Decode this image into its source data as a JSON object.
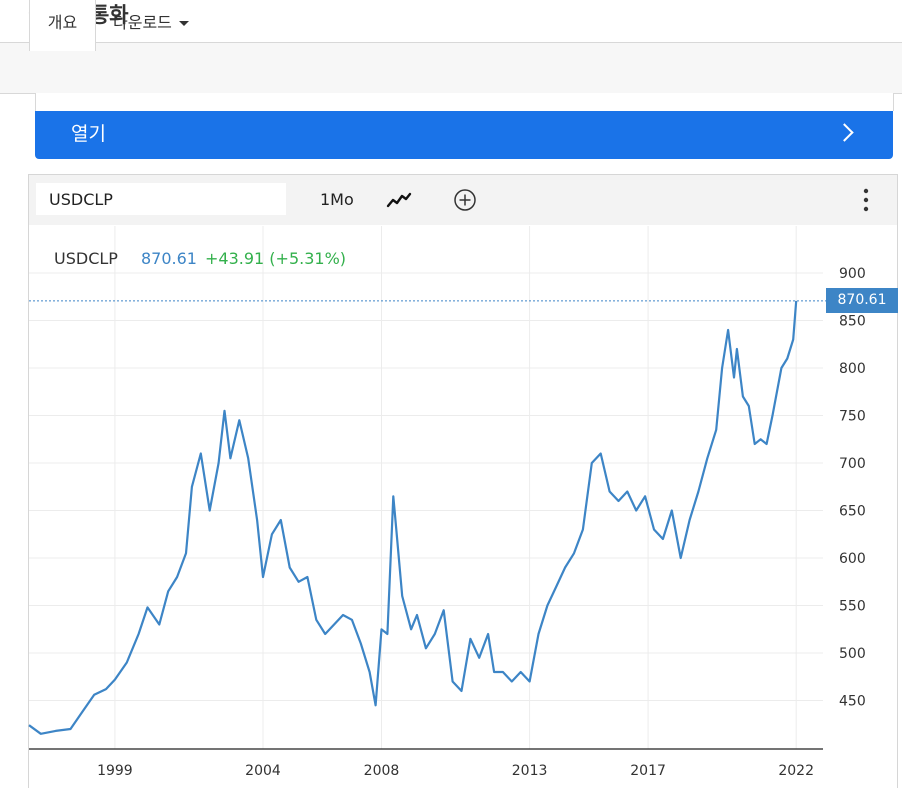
{
  "page": {
    "title": "칠레 - 통화"
  },
  "tabs": {
    "overview": "개요",
    "download": "다운로드"
  },
  "open_button": {
    "label": "열기"
  },
  "toolbar": {
    "symbol": "USDCLP",
    "interval": "1Mo",
    "icons": [
      "line-chart-icon",
      "add-circle-icon",
      "more-vert-icon"
    ]
  },
  "legend": {
    "symbol": "USDCLP",
    "value": "870.61",
    "change": "+43.91 (+5.31%)"
  },
  "colors": {
    "line": "#3d85c6",
    "change_positive": "#33b04c",
    "accent": "#1a73e8"
  },
  "chart_data": {
    "type": "line",
    "title": "",
    "xlabel": "",
    "ylabel": "",
    "x_tick_labels": [
      "1999",
      "2004",
      "2008",
      "2013",
      "2017",
      "2022"
    ],
    "x_tick_years": [
      1999,
      2004,
      2008,
      2013,
      2017,
      2022
    ],
    "y_tick_labels": [
      "900",
      "850",
      "800",
      "750",
      "700",
      "650",
      "600",
      "550",
      "500",
      "450"
    ],
    "ylim": [
      405,
      955
    ],
    "xlim": [
      1996.1,
      2022.5
    ],
    "grid": true,
    "last_price_label": "870.61",
    "last_price": 870.61,
    "series": [
      {
        "x": [
          1996.1,
          1996.5,
          1997.0,
          1997.5,
          1997.9,
          1998.3,
          1998.7,
          1999.0,
          1999.4,
          1999.8,
          2000.1,
          2000.5,
          2000.8,
          2001.1,
          2001.4,
          2001.6,
          2001.9,
          2002.2,
          2002.5,
          2002.7,
          2002.9,
          2003.2,
          2003.5,
          2003.8,
          2004.0,
          2004.3,
          2004.6,
          2004.9,
          2005.2,
          2005.5,
          2005.8,
          2006.1,
          2006.4,
          2006.7,
          2007.0,
          2007.3,
          2007.6,
          2007.8,
          2008.0,
          2008.2,
          2008.4,
          2008.5,
          2008.7,
          2009.0,
          2009.2,
          2009.5,
          2009.8,
          2010.1,
          2010.4,
          2010.7,
          2011.0,
          2011.3,
          2011.6,
          2011.8,
          2012.1,
          2012.4,
          2012.7,
          2013.0,
          2013.3,
          2013.6,
          2013.9,
          2014.2,
          2014.5,
          2014.8,
          2015.1,
          2015.4,
          2015.7,
          2016.0,
          2016.3,
          2016.6,
          2016.9,
          2017.2,
          2017.5,
          2017.8,
          2018.1,
          2018.4,
          2018.7,
          2019.0,
          2019.3,
          2019.5,
          2019.7,
          2019.9,
          2020.0,
          2020.2,
          2020.4,
          2020.6,
          2020.8,
          2021.0,
          2021.2,
          2021.5,
          2021.7,
          2021.9,
          2022.0
        ],
        "y": [
          424,
          415,
          418,
          420,
          438,
          456,
          462,
          472,
          490,
          520,
          548,
          530,
          565,
          580,
          605,
          675,
          710,
          650,
          700,
          755,
          705,
          745,
          705,
          640,
          580,
          625,
          640,
          590,
          575,
          580,
          535,
          520,
          530,
          540,
          535,
          510,
          480,
          445,
          525,
          520,
          665,
          630,
          560,
          525,
          540,
          505,
          520,
          545,
          470,
          460,
          515,
          495,
          520,
          480,
          480,
          470,
          480,
          470,
          520,
          550,
          570,
          590,
          605,
          630,
          700,
          710,
          670,
          660,
          670,
          650,
          665,
          630,
          620,
          650,
          600,
          640,
          670,
          705,
          735,
          800,
          840,
          790,
          820,
          770,
          760,
          720,
          725,
          720,
          750,
          800,
          810,
          830,
          870.61
        ]
      }
    ]
  }
}
